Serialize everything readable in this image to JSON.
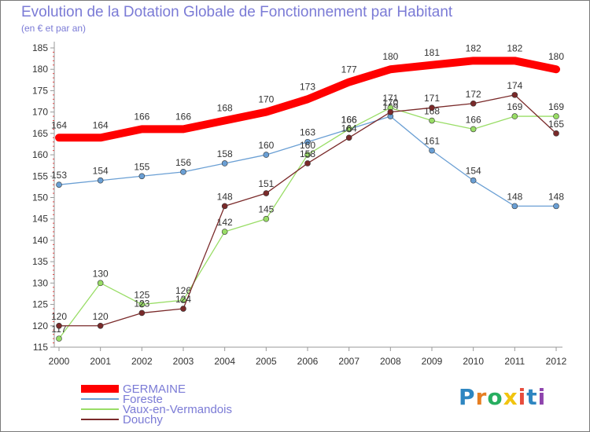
{
  "chart_data": {
    "type": "line",
    "title": "Evolution de la Dotation Globale de Fonctionnement par Habitant",
    "subtitle": "(en € et par an)",
    "xlabel": "",
    "ylabel": "",
    "x": [
      2000,
      2001,
      2002,
      2003,
      2004,
      2005,
      2006,
      2007,
      2008,
      2009,
      2010,
      2011,
      2012
    ],
    "ylim": [
      115,
      185
    ],
    "yticks": [
      115,
      120,
      125,
      130,
      135,
      140,
      145,
      150,
      155,
      160,
      165,
      170,
      175,
      180,
      185
    ],
    "grid": false,
    "legend_position": "bottom-left",
    "series": [
      {
        "name": "GERMAINE",
        "color": "#ff0000",
        "values": [
          164,
          164,
          166,
          166,
          168,
          170,
          173,
          177,
          180,
          181,
          182,
          182,
          180
        ]
      },
      {
        "name": "Foreste",
        "color": "#6a9fd4",
        "values": [
          153,
          154,
          155,
          156,
          158,
          160,
          163,
          166,
          169,
          161,
          154,
          148,
          148
        ]
      },
      {
        "name": "Vaux-en-Vermandois",
        "color": "#99dd66",
        "values": [
          117,
          130,
          125,
          126,
          142,
          145,
          160,
          166,
          171,
          168,
          166,
          169,
          169
        ]
      },
      {
        "name": "Douchy",
        "color": "#7a2a2a",
        "values": [
          120,
          120,
          123,
          124,
          148,
          151,
          158,
          164,
          170,
          171,
          172,
          174,
          165
        ]
      }
    ]
  },
  "logo": {
    "text": "Proxiti",
    "letters": [
      "P",
      "r",
      "o",
      "x",
      "i",
      "t",
      "i"
    ]
  }
}
